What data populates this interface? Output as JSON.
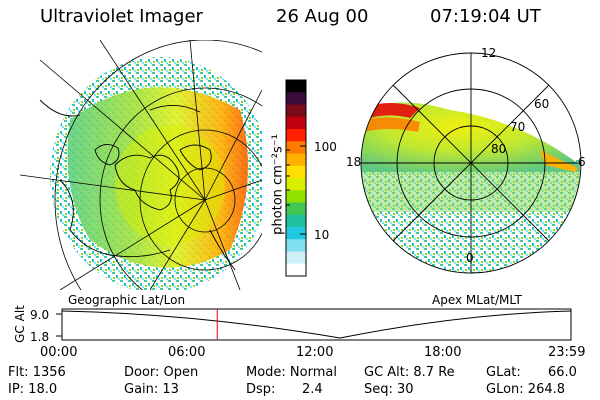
{
  "header": {
    "instrument": "Ultraviolet Imager",
    "date": "26 Aug 00",
    "time": "07:19:04 UT"
  },
  "colorbar": {
    "unit_label": "photon cm⁻²s⁻¹",
    "ticks": [
      "100",
      "10"
    ],
    "colors": [
      "#000000",
      "#3a0a3a",
      "#7a0a1a",
      "#c00010",
      "#ff2000",
      "#ff7a00",
      "#ffb000",
      "#ffe000",
      "#d8f000",
      "#90e000",
      "#40c850",
      "#20c0a0",
      "#20c8e0",
      "#80e0f0",
      "#d0f0f8",
      "#ffffff"
    ]
  },
  "left_map": {
    "caption": "Geographic Lat/Lon"
  },
  "right_map": {
    "caption": "Apex MLat/MLT",
    "mlt_labels": [
      "12",
      "18",
      "6",
      "0"
    ],
    "mlat_labels": [
      "60",
      "70",
      "80"
    ]
  },
  "altitude_plot": {
    "ylabel": "GC Alt",
    "y_ticks": [
      "9.0",
      "1.8"
    ],
    "x_ticks": [
      "00:00",
      "06:00",
      "12:00",
      "18:00",
      "23:59"
    ],
    "marker_hour": 7.32
  },
  "info": {
    "flt": "Flt: 1356",
    "ip": "IP: 18.0",
    "door": "Door: Open",
    "gain": "Gain: 13",
    "mode": "Mode: Normal",
    "dsp_label": "Dsp:",
    "dsp_value": "2.4",
    "gc_alt": "GC Alt: 8.7 Re",
    "seq": "Seq: 30",
    "glat": "GLat:",
    "glat_value": "66.0",
    "glon": "GLon: 264.8"
  }
}
